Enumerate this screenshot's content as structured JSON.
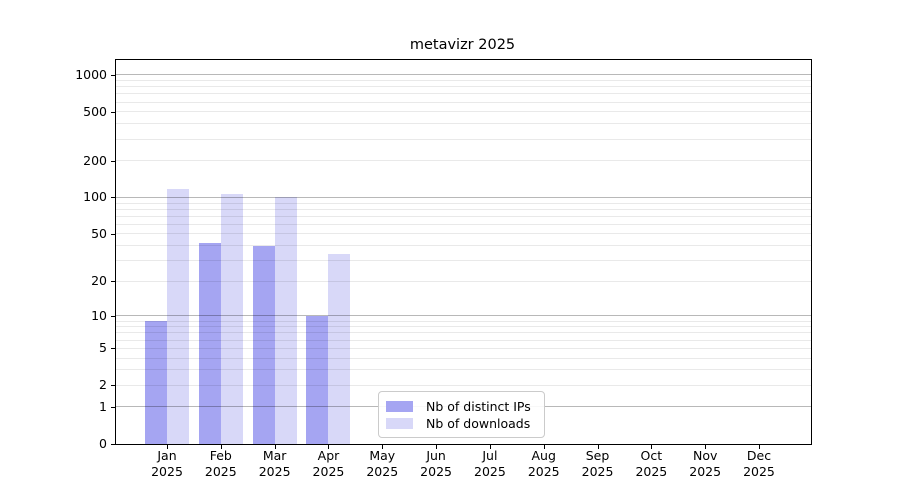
{
  "chart_data": {
    "type": "bar",
    "title": "metavizr 2025",
    "categories": [
      "Jan",
      "Feb",
      "Mar",
      "Apr",
      "May",
      "Jun",
      "Jul",
      "Aug",
      "Sep",
      "Oct",
      "Nov",
      "Dec"
    ],
    "x_tick_second_line": "2025",
    "series": [
      {
        "name": "Nb of distinct IPs",
        "color": "#a5a5f2",
        "values": [
          9,
          42,
          40,
          10,
          null,
          null,
          null,
          null,
          null,
          null,
          null,
          null
        ]
      },
      {
        "name": "Nb of downloads",
        "color": "#d8d8f8",
        "values": [
          118,
          107,
          100,
          34,
          null,
          null,
          null,
          null,
          null,
          null,
          null,
          null
        ]
      }
    ],
    "yscale": "log1p",
    "ylim": [
      0,
      1320
    ],
    "y_ticks": [
      0,
      1,
      2,
      5,
      10,
      20,
      50,
      100,
      200,
      500,
      1000
    ],
    "y_major_gridlines": [
      1,
      10,
      100,
      1000
    ],
    "y_minor_gridlines": [
      2,
      3,
      4,
      5,
      6,
      7,
      8,
      9,
      20,
      30,
      40,
      50,
      60,
      70,
      80,
      90,
      200,
      300,
      400,
      500,
      600,
      700,
      800,
      900
    ],
    "grid": true,
    "legend_position": "lower-center"
  }
}
